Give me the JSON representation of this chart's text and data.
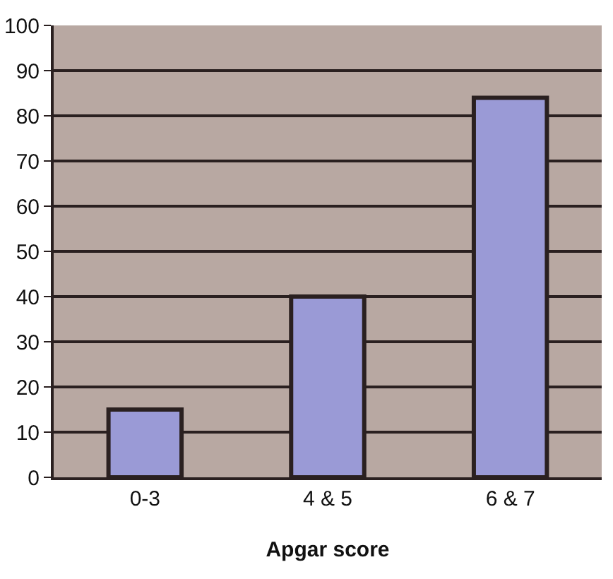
{
  "chart_data": {
    "type": "bar",
    "xlabel": "Apgar score",
    "categories": [
      "0-3",
      "4 & 5",
      "6 & 7"
    ],
    "values": [
      15,
      40,
      84
    ],
    "color": "#9a9ad6",
    "ylim": [
      0,
      100
    ],
    "yticks": [
      0,
      10,
      20,
      30,
      40,
      50,
      60,
      70,
      80,
      90,
      100
    ],
    "grid": "y"
  }
}
